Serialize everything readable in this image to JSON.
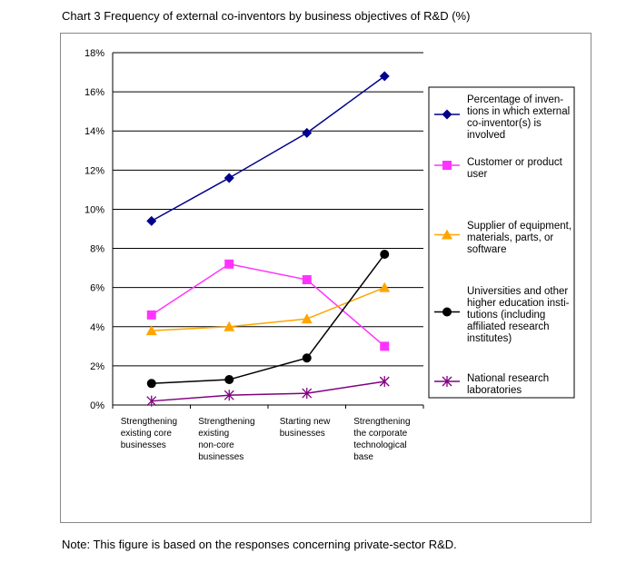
{
  "chart_data": {
    "type": "line",
    "title": "Chart 3  Frequency of external co-inventors by business objectives of R&D (%)",
    "xlabel": "",
    "ylabel": "",
    "ylim": [
      0,
      18
    ],
    "yticks": [
      "0%",
      "2%",
      "4%",
      "6%",
      "8%",
      "10%",
      "12%",
      "14%",
      "16%",
      "18%"
    ],
    "grid": true,
    "legend_position": "right",
    "categories": [
      [
        "Strengthening",
        "existing core",
        "businesses"
      ],
      [
        "Strengthening",
        "existing",
        "non-core",
        "businesses"
      ],
      [
        "Starting new",
        "businesses"
      ],
      [
        "Strengthening",
        "the corporate",
        "technological",
        "base"
      ]
    ],
    "series": [
      {
        "name": "Percentage of inven-tions in which external co-inventor(s) is involved",
        "legend_lines": [
          "Percentage of inven-",
          "tions in which external",
          "co-inventor(s) is",
          "involved"
        ],
        "values": [
          9.4,
          11.6,
          13.9,
          16.8
        ],
        "color": "#00008B",
        "marker": "diamond"
      },
      {
        "name": "Customer or product user",
        "legend_lines": [
          "Customer or product",
          "user"
        ],
        "values": [
          4.6,
          7.2,
          6.4,
          3.0
        ],
        "color": "#FF33FF",
        "marker": "square"
      },
      {
        "name": "Supplier of equipment, materials, parts, or software",
        "legend_lines": [
          "Supplier of equipment,",
          "materials, parts, or",
          "software"
        ],
        "values": [
          3.8,
          4.0,
          4.4,
          6.0
        ],
        "color": "#FFA500",
        "marker": "triangle"
      },
      {
        "name": "Universities and other higher education institutions (including affiliated research institutes)",
        "legend_lines": [
          "Universities and other",
          "higher education insti-",
          "tutions (including",
          "affiliated research",
          "institutes)"
        ],
        "values": [
          1.1,
          1.3,
          2.4,
          7.7
        ],
        "color": "#000000",
        "marker": "circle"
      },
      {
        "name": "National research laboratories",
        "legend_lines": [
          "National research",
          "laboratories"
        ],
        "values": [
          0.2,
          0.5,
          0.6,
          1.2
        ],
        "color": "#800080",
        "marker": "asterisk"
      }
    ]
  },
  "note": "Note: This figure is based on the responses concerning private-sector R&D."
}
